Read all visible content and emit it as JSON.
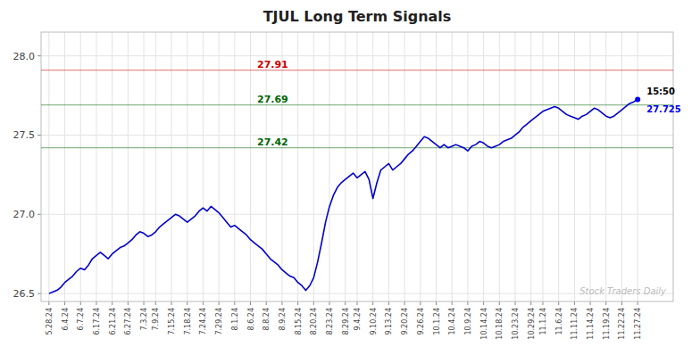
{
  "chart_data": {
    "type": "line",
    "title": "TJUL Long Term Signals",
    "color": "#0000cc",
    "grid": true,
    "ylim": [
      26.45,
      28.15
    ],
    "yticks": [
      26.5,
      {
        "value": 27,
        "label": "27.0"
      },
      27.5,
      {
        "value": 28,
        "label": "28.0"
      }
    ],
    "categories": [
      "5.28.24",
      null,
      null,
      null,
      "6.4.24",
      null,
      null,
      null,
      "6.7.24",
      null,
      null,
      null,
      "6.17.24",
      null,
      null,
      null,
      "6.21.24",
      null,
      null,
      null,
      "6.27.24",
      null,
      null,
      null,
      "7.3.24",
      null,
      null,
      "7.9.24",
      null,
      null,
      null,
      "7.15.24",
      null,
      null,
      null,
      "7.18.24",
      null,
      null,
      null,
      "7.24.24",
      null,
      null,
      null,
      "7.29.24",
      null,
      null,
      null,
      "8.1.24",
      null,
      null,
      null,
      "8.6.24",
      null,
      null,
      null,
      "8.8.24",
      null,
      null,
      null,
      "8.9.24",
      null,
      null,
      null,
      "8.15.24",
      null,
      null,
      null,
      "8.20.24",
      null,
      null,
      null,
      "8.23.24",
      null,
      null,
      null,
      "8.29.24",
      null,
      null,
      "9.4.24",
      null,
      null,
      null,
      "9.10.24",
      null,
      null,
      null,
      "9.13.24",
      null,
      null,
      null,
      "9.20.24",
      null,
      null,
      null,
      "9.26.24",
      null,
      null,
      null,
      "10.1.24",
      null,
      null,
      null,
      "10.4.24",
      null,
      null,
      null,
      "10.9.24",
      null,
      null,
      null,
      "10.14.24",
      null,
      null,
      null,
      "10.18.24",
      null,
      null,
      null,
      "10.23.24",
      null,
      null,
      null,
      "10.29.24",
      null,
      null,
      "11.1.24",
      null,
      null,
      null,
      "11.6.24",
      null,
      null,
      null,
      "11.11.24",
      null,
      null,
      null,
      "11.14.24",
      null,
      null,
      null,
      "11.19.24",
      null,
      null,
      null,
      "11.22.24",
      null,
      null,
      null,
      "11.27.24"
    ],
    "values": [
      26.5,
      26.51,
      26.52,
      26.54,
      26.57,
      26.59,
      26.61,
      26.64,
      26.66,
      26.65,
      26.68,
      26.72,
      26.74,
      26.76,
      26.74,
      26.72,
      26.75,
      26.77,
      26.79,
      26.8,
      26.82,
      26.84,
      26.87,
      26.89,
      26.88,
      26.86,
      26.87,
      26.89,
      26.92,
      26.94,
      26.96,
      26.98,
      27.0,
      26.99,
      26.97,
      26.95,
      26.97,
      26.99,
      27.02,
      27.04,
      27.02,
      27.05,
      27.03,
      27.01,
      26.98,
      26.95,
      26.92,
      26.93,
      26.91,
      26.89,
      26.87,
      26.84,
      26.82,
      26.8,
      26.78,
      26.75,
      26.72,
      26.7,
      26.68,
      26.65,
      26.63,
      26.61,
      26.6,
      26.57,
      26.55,
      26.52,
      26.55,
      26.6,
      26.7,
      26.82,
      26.95,
      27.05,
      27.12,
      27.17,
      27.2,
      27.22,
      27.24,
      27.26,
      27.23,
      27.25,
      27.27,
      27.22,
      27.1,
      27.2,
      27.28,
      27.3,
      27.32,
      27.28,
      27.3,
      27.32,
      27.35,
      27.38,
      27.4,
      27.43,
      27.46,
      27.49,
      27.48,
      27.46,
      27.44,
      27.42,
      27.44,
      27.42,
      27.43,
      27.44,
      27.43,
      27.42,
      27.4,
      27.43,
      27.44,
      27.46,
      27.45,
      27.43,
      27.42,
      27.43,
      27.44,
      27.46,
      27.47,
      27.48,
      27.5,
      27.52,
      27.55,
      27.57,
      27.59,
      27.61,
      27.63,
      27.65,
      27.66,
      27.67,
      27.68,
      27.67,
      27.65,
      27.63,
      27.62,
      27.61,
      27.6,
      27.62,
      27.63,
      27.65,
      27.67,
      27.66,
      27.64,
      27.62,
      27.61,
      27.62,
      27.64,
      27.66,
      27.68,
      27.7,
      27.71,
      27.725
    ],
    "hlines": [
      {
        "value": 27.91,
        "label": "27.91",
        "color": "#cc0000"
      },
      {
        "value": 27.69,
        "label": "27.69",
        "color": "#006600"
      },
      {
        "value": 27.42,
        "label": "27.42",
        "color": "#006600"
      }
    ],
    "last_price": {
      "value": 27.725,
      "time": "15:50",
      "color": "#0000ee"
    },
    "watermark": "Stock Traders Daily"
  }
}
